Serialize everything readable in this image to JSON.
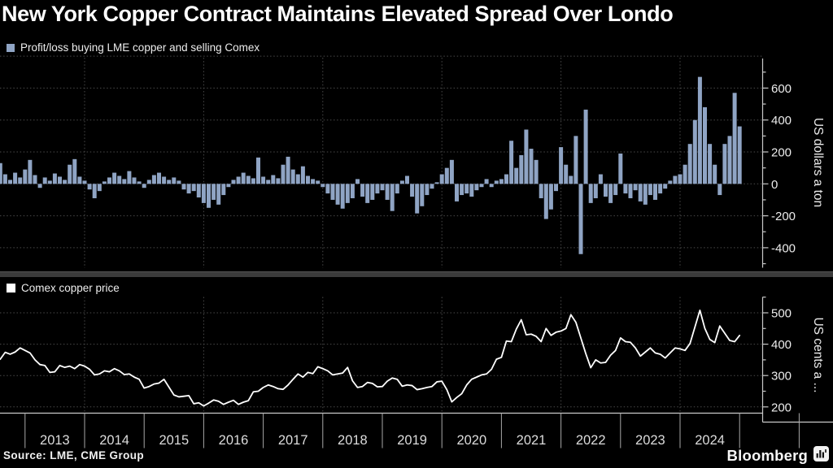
{
  "title": "New York Copper Contract Maintains Elevated Spread Over Londo",
  "source": "Source: LME, CME Group",
  "brand": "Bloomberg",
  "x_axis": {
    "years": [
      "2013",
      "2014",
      "2015",
      "2016",
      "2017",
      "2018",
      "2019",
      "2020",
      "2021",
      "2022",
      "2023",
      "2024"
    ],
    "start": "2012-08",
    "end": "2025-01",
    "interval": "monthly"
  },
  "chart_data": [
    {
      "type": "bar",
      "legend": "Profit/loss buying LME copper and selling Comex",
      "ylabel": "US dollars a ton",
      "yticks": [
        600,
        400,
        200,
        0,
        -200,
        -400
      ],
      "yticks_minor": [
        700,
        500,
        300,
        100,
        -100,
        -300,
        -500
      ],
      "ygrid_extra": [
        800
      ],
      "ylim": [
        -520,
        820
      ],
      "color": "#8fa4c4",
      "values": [
        130,
        60,
        25,
        70,
        40,
        90,
        150,
        55,
        -25,
        40,
        20,
        65,
        45,
        25,
        120,
        155,
        45,
        20,
        -35,
        -90,
        -45,
        15,
        40,
        70,
        50,
        30,
        80,
        40,
        15,
        -25,
        25,
        55,
        70,
        45,
        25,
        40,
        20,
        -35,
        -60,
        -45,
        -85,
        -120,
        -150,
        -100,
        -130,
        -70,
        -20,
        25,
        45,
        70,
        50,
        35,
        165,
        45,
        25,
        55,
        35,
        120,
        170,
        90,
        60,
        110,
        50,
        30,
        20,
        -20,
        -60,
        -100,
        -130,
        -155,
        -120,
        -90,
        30,
        -80,
        -120,
        -100,
        -60,
        -40,
        -100,
        -170,
        -60,
        20,
        50,
        -80,
        -185,
        -140,
        -70,
        -30,
        10,
        60,
        100,
        150,
        -110,
        -70,
        -60,
        -80,
        -40,
        -20,
        30,
        -20,
        20,
        30,
        60,
        270,
        100,
        180,
        340,
        220,
        150,
        -90,
        -220,
        -160,
        -45,
        230,
        120,
        50,
        300,
        -440,
        465,
        -120,
        -90,
        60,
        -80,
        -120,
        -70,
        190,
        -60,
        -90,
        -40,
        -110,
        -130,
        -70,
        -100,
        -60,
        -30,
        20,
        50,
        60,
        120,
        250,
        400,
        670,
        480,
        250,
        120,
        -70,
        250,
        300,
        570,
        360
      ]
    },
    {
      "type": "line",
      "legend": "Comex copper price",
      "ylabel": "US cents a ...",
      "yticks": [
        500,
        400,
        300,
        200
      ],
      "yticks_minor": [
        550,
        450,
        350,
        250
      ],
      "ylim": [
        175,
        545
      ],
      "color": "#ffffff",
      "values": [
        352,
        374,
        368,
        375,
        388,
        380,
        372,
        350,
        335,
        332,
        310,
        312,
        332,
        326,
        330,
        322,
        335,
        330,
        320,
        302,
        305,
        315,
        312,
        322,
        315,
        303,
        305,
        295,
        288,
        260,
        265,
        273,
        276,
        288,
        263,
        238,
        232,
        234,
        236,
        210,
        213,
        203,
        212,
        222,
        218,
        208,
        215,
        221,
        208,
        215,
        220,
        248,
        250,
        262,
        270,
        265,
        258,
        256,
        270,
        288,
        305,
        295,
        310,
        306,
        328,
        322,
        315,
        302,
        305,
        308,
        326,
        283,
        262,
        265,
        278,
        275,
        264,
        265,
        282,
        292,
        288,
        266,
        270,
        268,
        255,
        258,
        262,
        265,
        280,
        282,
        255,
        216,
        230,
        242,
        270,
        288,
        295,
        302,
        305,
        320,
        352,
        358,
        410,
        408,
        448,
        478,
        430,
        432,
        425,
        408,
        450,
        428,
        438,
        442,
        450,
        494,
        470,
        420,
        370,
        325,
        350,
        340,
        342,
        365,
        380,
        420,
        408,
        406,
        388,
        362,
        375,
        388,
        372,
        368,
        356,
        372,
        388,
        385,
        380,
        402,
        455,
        508,
        450,
        415,
        405,
        458,
        435,
        412,
        408,
        428
      ]
    }
  ]
}
